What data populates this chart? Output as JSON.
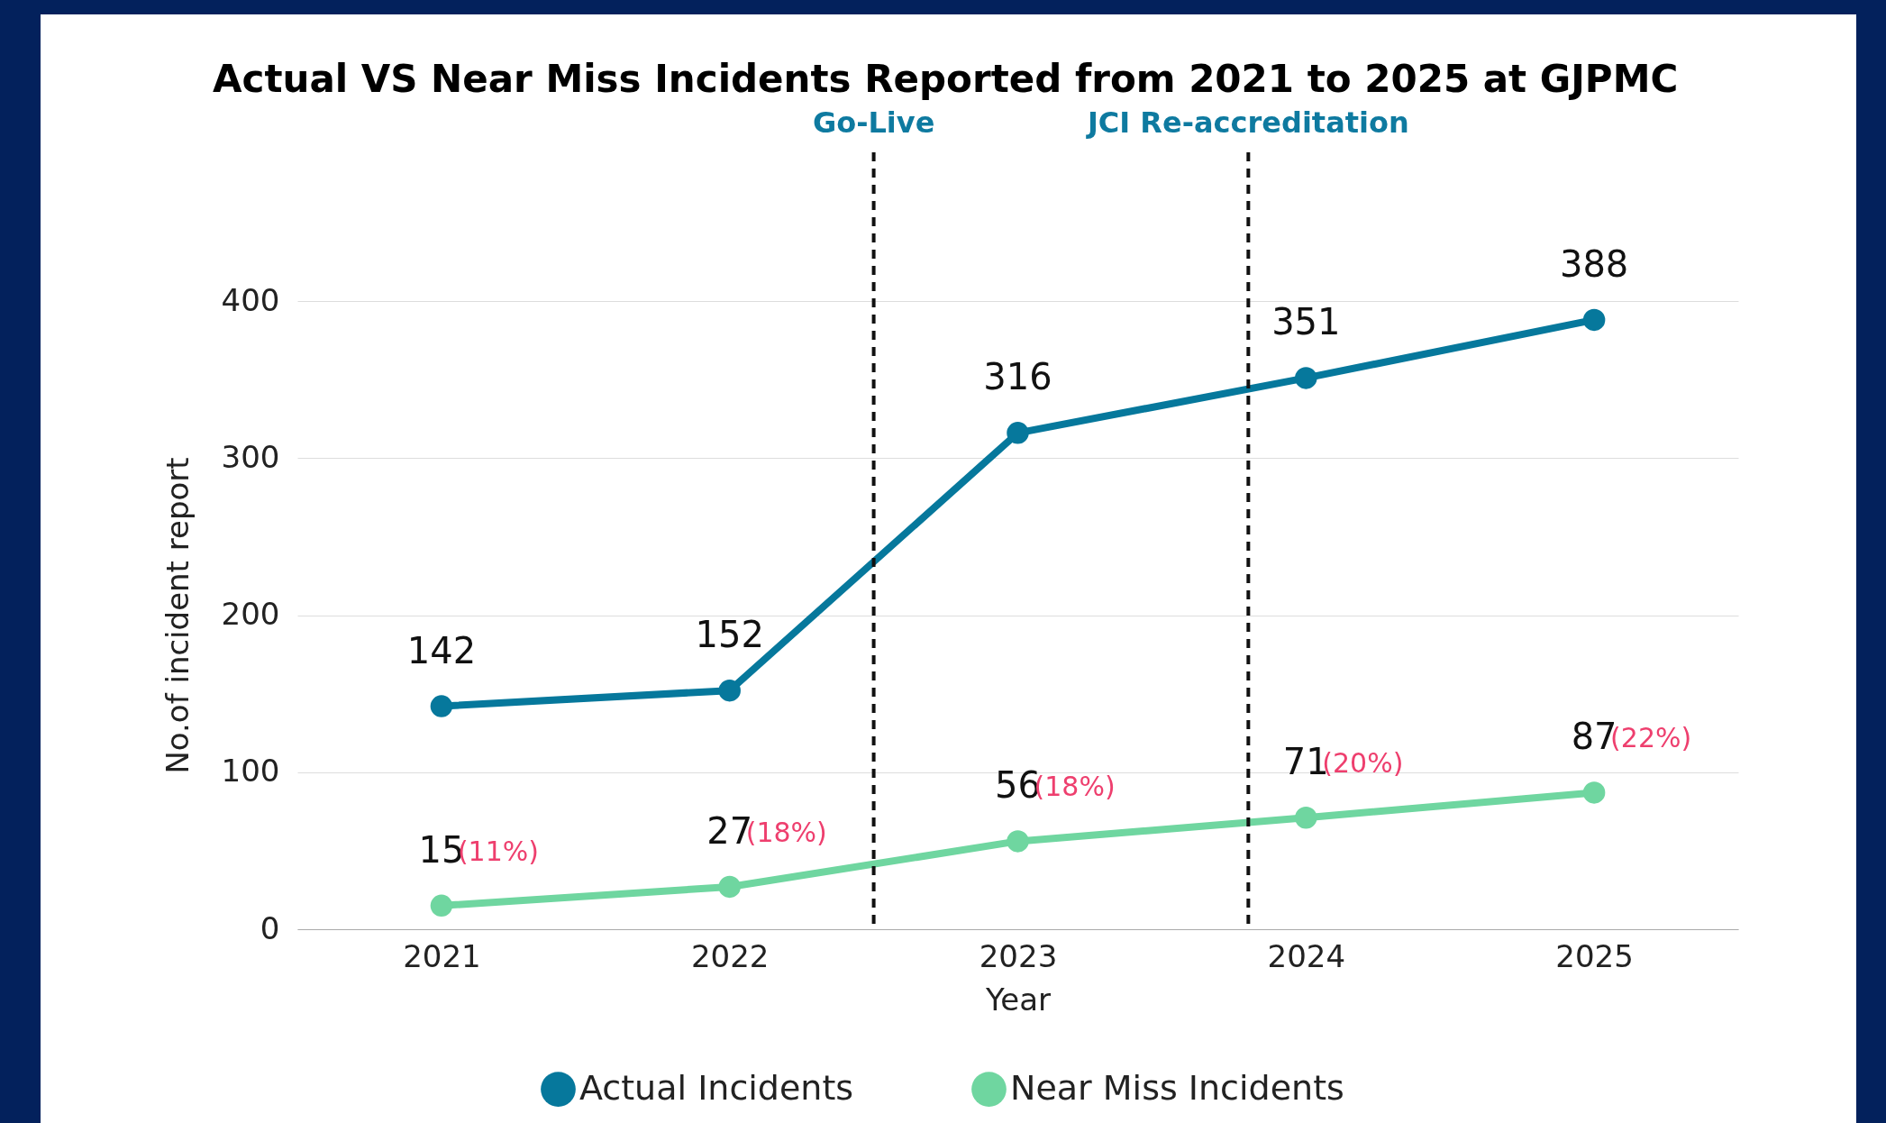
{
  "chart_data": {
    "type": "line",
    "title": "Actual VS Near Miss Incidents Reported from 2021 to 2025 at GJPMC",
    "xlabel": "Year",
    "ylabel": "No.of incident report",
    "x": [
      2021,
      2022,
      2023,
      2024,
      2025
    ],
    "xlim": [
      2020.5,
      2025.5
    ],
    "xticks": [
      2021,
      2022,
      2023,
      2024,
      2025
    ],
    "ylim": [
      0,
      400
    ],
    "yticks": [
      0,
      100,
      200,
      300,
      400
    ],
    "series": [
      {
        "name": "Actual Incidents",
        "color": "#06789c",
        "values": [
          142,
          152,
          316,
          351,
          388
        ]
      },
      {
        "name": "Near Miss Incidents",
        "color": "#6fd6a0",
        "values": [
          15,
          27,
          56,
          71,
          87
        ]
      }
    ],
    "data_labels": true,
    "marker": "circle",
    "line_style": "solid",
    "grid": "y",
    "legend": "bottom",
    "ref_lines": [
      {
        "axis": "x",
        "value": 2022.5,
        "label": "Go-Live",
        "color": "#111111",
        "line_style": "dashed"
      },
      {
        "axis": "x",
        "value": 2023.8,
        "label": "JCI Re-accreditation",
        "color": "#111111",
        "line_style": "dashed"
      }
    ],
    "annotations": [
      {
        "text": "(11%)",
        "x": 2021,
        "y": 15
      },
      {
        "text": "(18%)",
        "x": 2022,
        "y": 27
      },
      {
        "text": "(18%)",
        "x": 2023,
        "y": 56
      },
      {
        "text": "(20%)",
        "x": 2024,
        "y": 71
      },
      {
        "text": "(22%)",
        "x": 2025,
        "y": 87
      }
    ]
  }
}
